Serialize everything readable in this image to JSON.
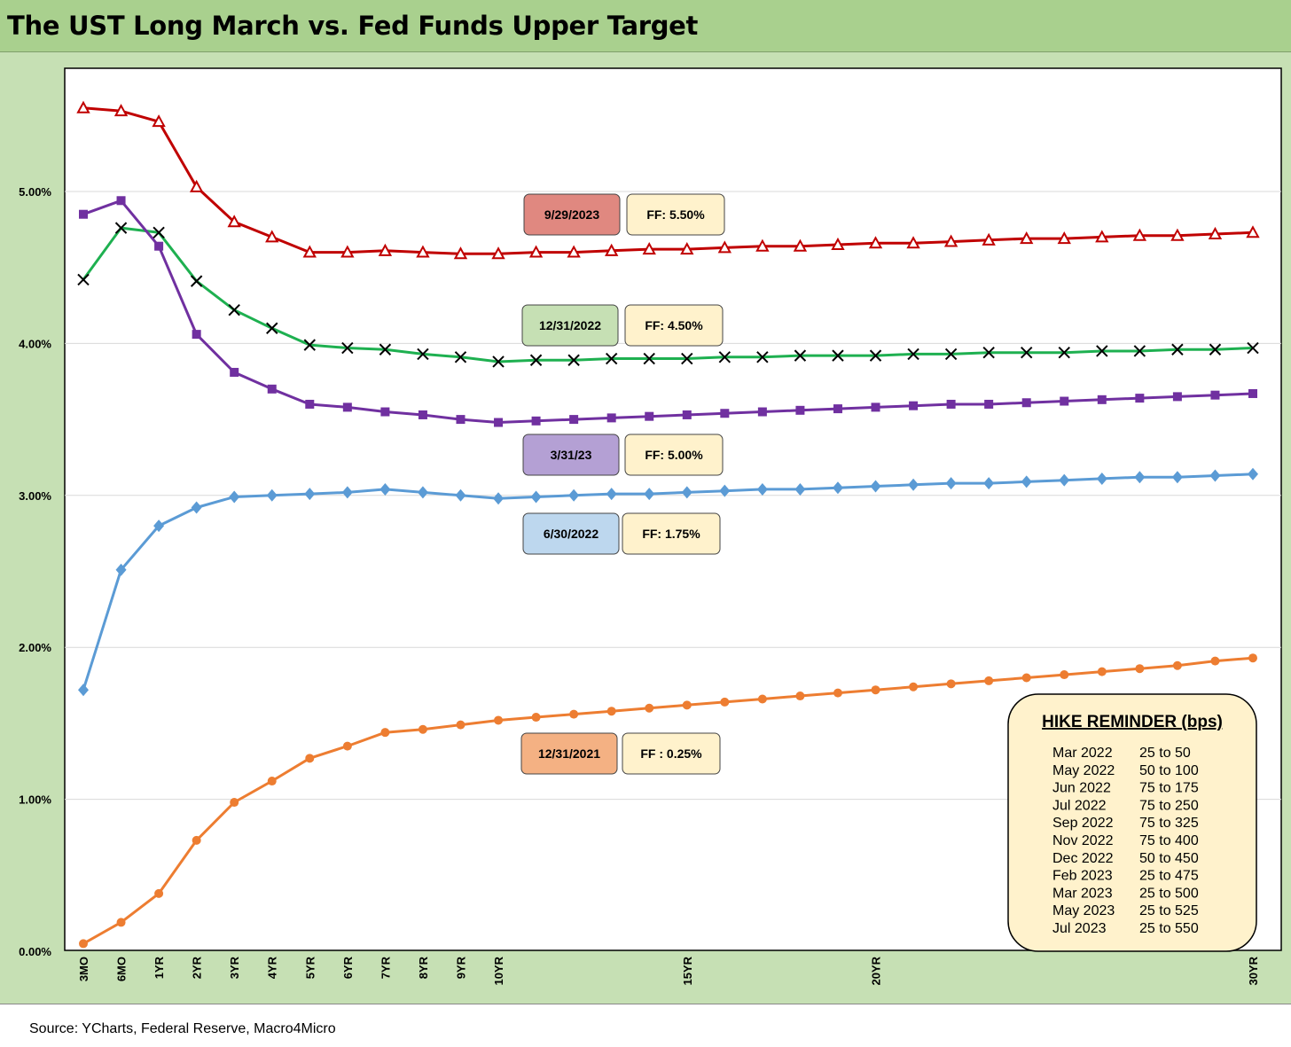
{
  "title": "The UST Long March vs. Fed Funds Upper Target",
  "source": "Source: YCharts, Federal Reserve, Macro4Micro",
  "chart_data": {
    "type": "line",
    "title": "The UST Long March vs. Fed Funds Upper Target",
    "ylim": [
      0,
      5.8
    ],
    "yticks": [
      0,
      1,
      2,
      3,
      4,
      5
    ],
    "ytick_labels": [
      "0.00%",
      "1.00%",
      "2.00%",
      "3.00%",
      "4.00%",
      "5.00%"
    ],
    "grid": true,
    "x_count": 32,
    "x_tick_labels": [
      {
        "i": 0,
        "label": "3MO"
      },
      {
        "i": 1,
        "label": "6MO"
      },
      {
        "i": 2,
        "label": "1YR"
      },
      {
        "i": 3,
        "label": "2YR"
      },
      {
        "i": 4,
        "label": "3YR"
      },
      {
        "i": 5,
        "label": "4YR"
      },
      {
        "i": 6,
        "label": "5YR"
      },
      {
        "i": 7,
        "label": "6YR"
      },
      {
        "i": 8,
        "label": "7YR"
      },
      {
        "i": 9,
        "label": "8YR"
      },
      {
        "i": 10,
        "label": "9YR"
      },
      {
        "i": 11,
        "label": "10YR"
      },
      {
        "i": 16,
        "label": "15YR"
      },
      {
        "i": 21,
        "label": "20YR"
      },
      {
        "i": 31,
        "label": "30YR"
      }
    ],
    "series": [
      {
        "name": "9/29/2023",
        "ff": "FF: 5.50%",
        "color": "#c00000",
        "marker": "triangle",
        "label_bg": "#e08880",
        "values": [
          5.55,
          5.53,
          5.46,
          5.03,
          4.8,
          4.7,
          4.6,
          4.6,
          4.61,
          4.6,
          4.59,
          4.59,
          4.6,
          4.6,
          4.61,
          4.62,
          4.62,
          4.63,
          4.64,
          4.64,
          4.65,
          4.66,
          4.66,
          4.67,
          4.68,
          4.69,
          4.69,
          4.7,
          4.71,
          4.71,
          4.72,
          4.73
        ]
      },
      {
        "name": "12/31/2022",
        "ff": "FF: 4.50%",
        "color": "#1eb050",
        "marker": "x",
        "label_bg": "#c6e0b4",
        "values": [
          4.42,
          4.76,
          4.73,
          4.41,
          4.22,
          4.1,
          3.99,
          3.97,
          3.96,
          3.93,
          3.91,
          3.88,
          3.89,
          3.89,
          3.9,
          3.9,
          3.9,
          3.91,
          3.91,
          3.92,
          3.92,
          3.92,
          3.93,
          3.93,
          3.94,
          3.94,
          3.94,
          3.95,
          3.95,
          3.96,
          3.96,
          3.97
        ]
      },
      {
        "name": "3/31/23",
        "ff": "FF: 5.00%",
        "color": "#7030a0",
        "marker": "square",
        "label_bg": "#b4a0d4",
        "values": [
          4.85,
          4.94,
          4.64,
          4.06,
          3.81,
          3.7,
          3.6,
          3.58,
          3.55,
          3.53,
          3.5,
          3.48,
          3.49,
          3.5,
          3.51,
          3.52,
          3.53,
          3.54,
          3.55,
          3.56,
          3.57,
          3.58,
          3.59,
          3.6,
          3.6,
          3.61,
          3.62,
          3.63,
          3.64,
          3.65,
          3.66,
          3.67
        ]
      },
      {
        "name": "6/30/2022",
        "ff": "FF: 1.75%",
        "color": "#5b9bd5",
        "marker": "diamond",
        "label_bg": "#bdd7ee",
        "values": [
          1.72,
          2.51,
          2.8,
          2.92,
          2.99,
          3.0,
          3.01,
          3.02,
          3.04,
          3.02,
          3.0,
          2.98,
          2.99,
          3.0,
          3.01,
          3.01,
          3.02,
          3.03,
          3.04,
          3.04,
          3.05,
          3.06,
          3.07,
          3.08,
          3.08,
          3.09,
          3.1,
          3.11,
          3.12,
          3.12,
          3.13,
          3.14
        ]
      },
      {
        "name": "12/31/2021",
        "ff": "FF : 0.25%",
        "color": "#ed7d31",
        "marker": "circle",
        "label_bg": "#f4b183",
        "values": [
          0.05,
          0.19,
          0.38,
          0.73,
          0.98,
          1.12,
          1.27,
          1.35,
          1.44,
          1.46,
          1.49,
          1.52,
          1.54,
          1.56,
          1.58,
          1.6,
          1.62,
          1.64,
          1.66,
          1.68,
          1.7,
          1.72,
          1.74,
          1.76,
          1.78,
          1.8,
          1.82,
          1.84,
          1.86,
          1.88,
          1.91,
          1.93
        ]
      }
    ]
  },
  "hike_reminder": {
    "title": "HIKE REMINDER (bps)",
    "rows": [
      {
        "date": "Mar 2022",
        "hike": "25 to 50"
      },
      {
        "date": "May 2022",
        "hike": "50 to 100"
      },
      {
        "date": "Jun 2022",
        "hike": "75 to 175"
      },
      {
        "date": "Jul 2022",
        "hike": "75 to 250"
      },
      {
        "date": "Sep 2022",
        "hike": "75 to 325"
      },
      {
        "date": "Nov 2022",
        "hike": "75 to 400"
      },
      {
        "date": "Dec 2022",
        "hike": "50 to 450"
      },
      {
        "date": "Feb 2023",
        "hike": "25 to 475"
      },
      {
        "date": "Mar 2023",
        "hike": "25 to 500"
      },
      {
        "date": "May 2023",
        "hike": "25 to 525"
      },
      {
        "date": "Jul 2023",
        "hike": "25 to 550"
      }
    ]
  }
}
